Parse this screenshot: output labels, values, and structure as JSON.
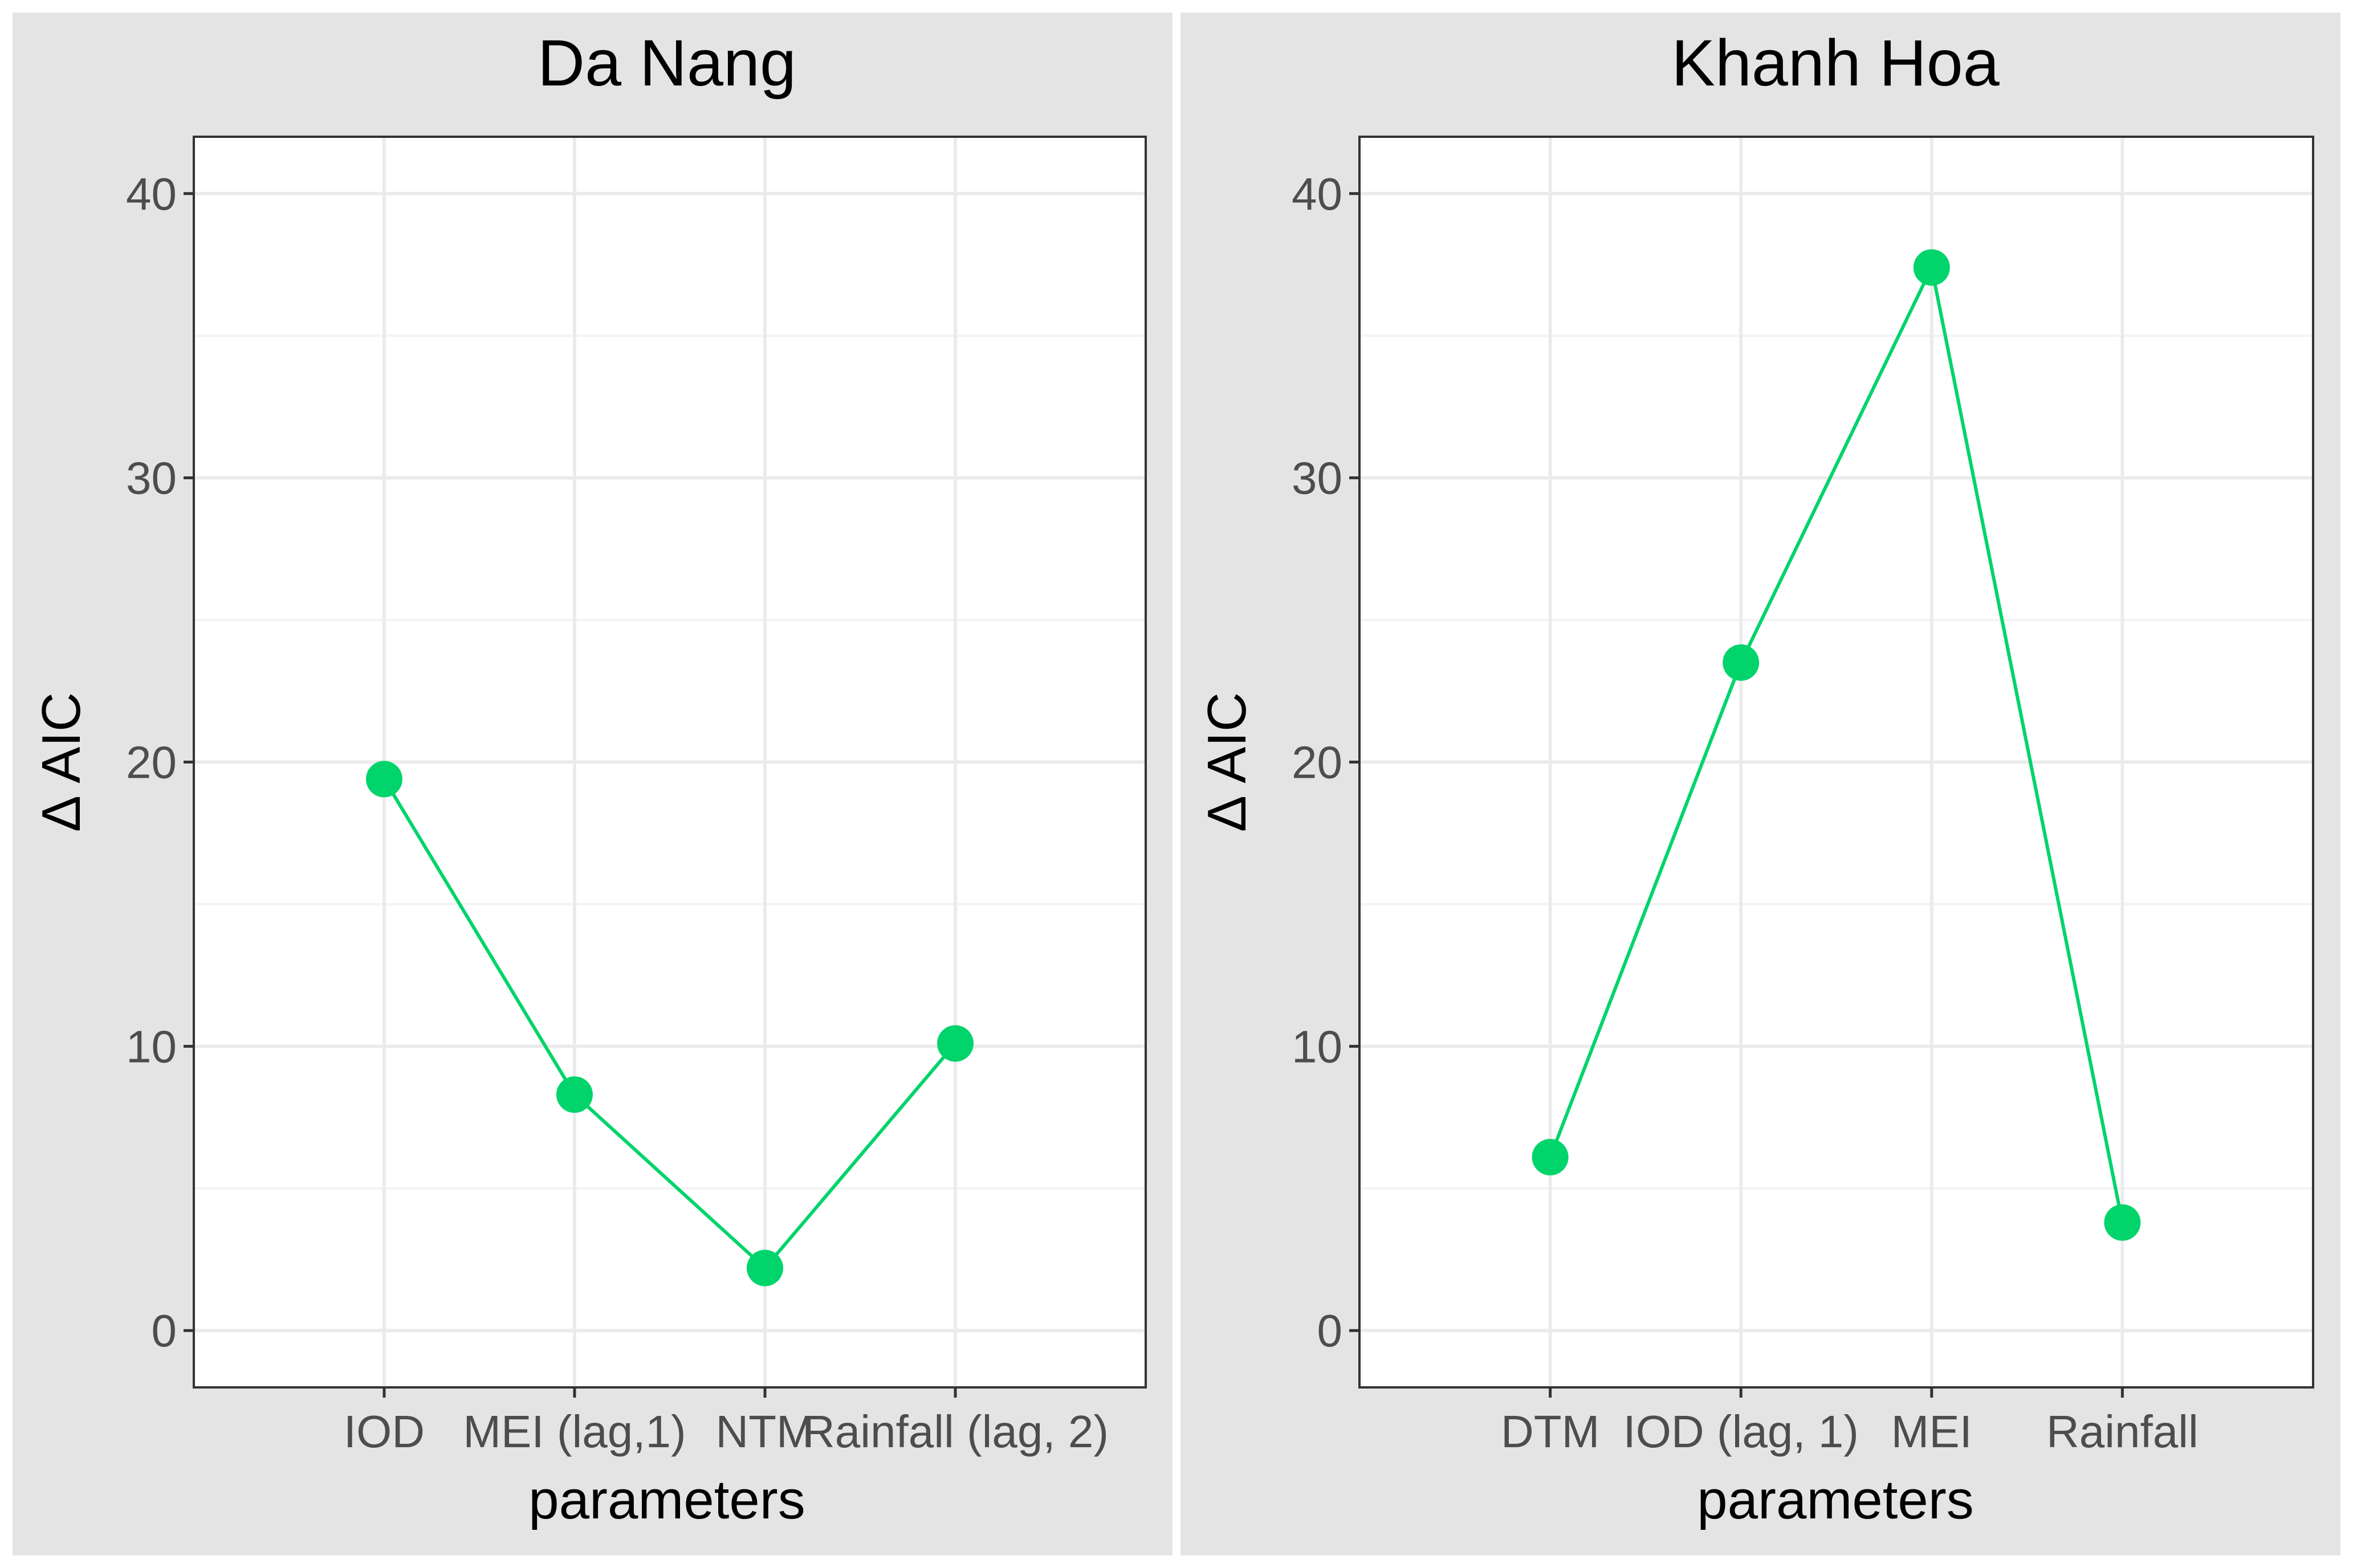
{
  "chart_data": [
    {
      "type": "line",
      "title": "Da Nang",
      "xlabel": "parameters",
      "ylabel": "Δ AIC",
      "categories": [
        "IOD",
        "MEI (lag,1)",
        "NTM",
        "Rainfall (lag, 2)"
      ],
      "values": [
        19.4,
        8.3,
        2.2,
        10.1
      ],
      "ylim": [
        -2,
        42
      ],
      "yticks": [
        0,
        10,
        20,
        30,
        40
      ],
      "grid": true,
      "color": "#00d46a"
    },
    {
      "type": "line",
      "title": "Khanh Hoa",
      "xlabel": "parameters",
      "ylabel": "Δ AIC",
      "categories": [
        "DTM",
        "IOD (lag, 1)",
        "MEI",
        "Rainfall"
      ],
      "values": [
        6.1,
        23.5,
        37.4,
        3.8
      ],
      "ylim": [
        -2,
        42
      ],
      "yticks": [
        0,
        10,
        20,
        30,
        40
      ],
      "grid": true,
      "color": "#00d46a"
    }
  ]
}
